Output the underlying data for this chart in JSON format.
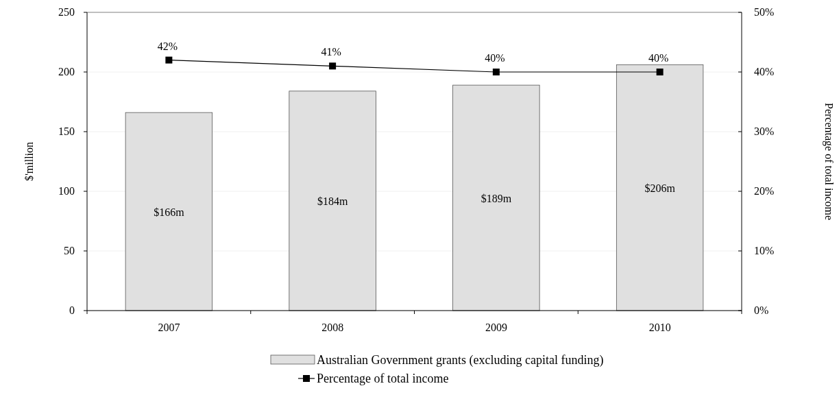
{
  "chart_data": {
    "type": "bar",
    "categories": [
      "2007",
      "2008",
      "2009",
      "2010"
    ],
    "ylabel": "$'million",
    "y2label": "Percentage of total income",
    "ylim": [
      0,
      250
    ],
    "yticks": [
      0,
      50,
      100,
      150,
      200,
      250
    ],
    "y2lim": [
      0,
      50
    ],
    "y2ticks": [
      {
        "value": 0,
        "label": "0%"
      },
      {
        "value": 10,
        "label": "10%"
      },
      {
        "value": 20,
        "label": "20%"
      },
      {
        "value": 30,
        "label": "30%"
      },
      {
        "value": 40,
        "label": "40%"
      },
      {
        "value": 50,
        "label": "50%"
      }
    ],
    "grid": "y",
    "legend": "bottom",
    "series": [
      {
        "name": "Australian Government grants (excluding capital funding)",
        "color": "#e0e0e0",
        "values": [
          166,
          184,
          189,
          206
        ],
        "value_labels": [
          "$166m",
          "$184m",
          "$189m",
          "$206m"
        ]
      },
      {
        "name": "Percentage of total income",
        "type": "line",
        "axis": "y2",
        "color": "#000000",
        "marker": "square",
        "line_style": "solid",
        "values": [
          42,
          41,
          40,
          40
        ],
        "value_labels": [
          "42%",
          "41%",
          "40%",
          "40%"
        ]
      }
    ]
  }
}
